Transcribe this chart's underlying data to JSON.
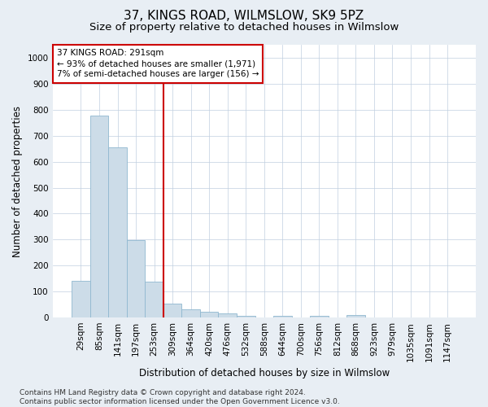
{
  "title": "37, KINGS ROAD, WILMSLOW, SK9 5PZ",
  "subtitle": "Size of property relative to detached houses in Wilmslow",
  "xlabel": "Distribution of detached houses by size in Wilmslow",
  "ylabel": "Number of detached properties",
  "bin_labels": [
    "29sqm",
    "85sqm",
    "141sqm",
    "197sqm",
    "253sqm",
    "309sqm",
    "364sqm",
    "420sqm",
    "476sqm",
    "532sqm",
    "588sqm",
    "644sqm",
    "700sqm",
    "756sqm",
    "812sqm",
    "868sqm",
    "923sqm",
    "979sqm",
    "1035sqm",
    "1091sqm",
    "1147sqm"
  ],
  "bar_heights": [
    140,
    778,
    655,
    298,
    138,
    55,
    30,
    22,
    15,
    5,
    0,
    7,
    0,
    7,
    0,
    10,
    0,
    0,
    0,
    0,
    0
  ],
  "bar_color": "#ccdce8",
  "bar_edge_color": "#90b8d0",
  "vline_x_index": 5,
  "vline_color": "#cc0000",
  "annotation_line1": "37 KINGS ROAD: 291sqm",
  "annotation_line2": "← 93% of detached houses are smaller (1,971)",
  "annotation_line3": "7% of semi-detached houses are larger (156) →",
  "ylim": [
    0,
    1050
  ],
  "yticks": [
    0,
    100,
    200,
    300,
    400,
    500,
    600,
    700,
    800,
    900,
    1000
  ],
  "footer_text": "Contains HM Land Registry data © Crown copyright and database right 2024.\nContains public sector information licensed under the Open Government Licence v3.0.",
  "background_color": "#e8eef4",
  "plot_bg_color": "#ffffff",
  "grid_color": "#c0cfe0",
  "title_fontsize": 11,
  "subtitle_fontsize": 9.5,
  "axis_label_fontsize": 8.5,
  "tick_fontsize": 7.5,
  "annotation_fontsize": 7.5,
  "footer_fontsize": 6.5
}
